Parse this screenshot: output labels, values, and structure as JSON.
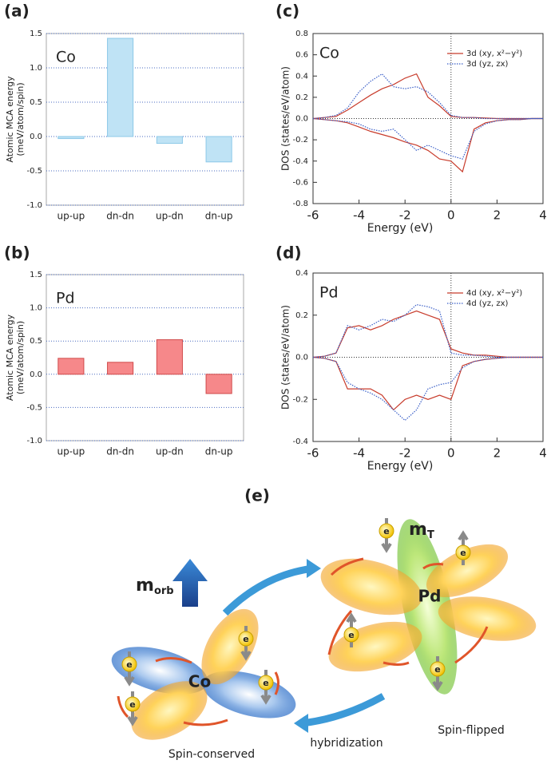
{
  "chart_data": [
    {
      "type": "bar",
      "label": "(a)",
      "annotation": "Co",
      "ylabel": [
        "Atomic MCA energy",
        "(meV/atom/spin)"
      ],
      "categories": [
        "up-up",
        "dn-dn",
        "up-dn",
        "dn-up"
      ],
      "values": [
        -0.03,
        1.43,
        -0.1,
        -0.37
      ],
      "color": "#bfe3f5",
      "edge_color": "#8cc8e8",
      "ylim": [
        -1,
        1.5
      ],
      "yticks": [
        {
          "value": -1,
          "label": "-1.0"
        },
        -0.5,
        {
          "value": 0,
          "label": "0.0"
        },
        0.5,
        {
          "value": 1,
          "label": "1.0"
        },
        1.5
      ],
      "grid": true
    },
    {
      "type": "line",
      "label": "(c)",
      "annotation": "Co",
      "xlabel": "Energy (eV)",
      "ylabel": "DOS (states/eV/atom)",
      "x": [
        -6,
        -5.5,
        -5,
        -4.5,
        -4,
        -3.5,
        -3,
        -2.5,
        -2,
        -1.5,
        -1,
        -0.5,
        0,
        0.5,
        1,
        1.5,
        2,
        2.5,
        3,
        3.5,
        4
      ],
      "series": [
        {
          "name": "3d (xy, x²−y²)",
          "color": "#c83c2c",
          "dash": false,
          "values": [
            0,
            0.01,
            0.02,
            0.08,
            0.15,
            0.22,
            0.28,
            0.32,
            0.38,
            0.42,
            0.2,
            0.12,
            0.02,
            0.01,
            0.01,
            0.005,
            0,
            0,
            0,
            0,
            0
          ],
          "values_down": [
            0,
            -0.01,
            -0.02,
            -0.04,
            -0.08,
            -0.12,
            -0.15,
            -0.18,
            -0.22,
            -0.25,
            -0.3,
            -0.38,
            -0.4,
            -0.5,
            -0.1,
            -0.04,
            -0.02,
            -0.01,
            -0.01,
            0,
            0
          ]
        },
        {
          "name": "3d (yz, zx)",
          "color": "#3a5fc8",
          "dash": true,
          "values": [
            0,
            0.01,
            0.03,
            0.1,
            0.25,
            0.35,
            0.42,
            0.3,
            0.28,
            0.3,
            0.25,
            0.15,
            0.03,
            0.01,
            0.01,
            0,
            0,
            0,
            0,
            0,
            0
          ],
          "values_down": [
            0,
            -0.01,
            -0.02,
            -0.03,
            -0.05,
            -0.1,
            -0.12,
            -0.1,
            -0.2,
            -0.3,
            -0.25,
            -0.3,
            -0.35,
            -0.38,
            -0.12,
            -0.05,
            -0.02,
            -0.01,
            -0.01,
            0,
            0
          ]
        }
      ],
      "xlim": [
        -6,
        4
      ],
      "xticks": [
        -6,
        -4,
        -2,
        0,
        2,
        4
      ],
      "ylim": [
        -0.8,
        0.8
      ],
      "yticks": [
        -0.8,
        -0.6,
        -0.4,
        -0.2,
        {
          "value": 0,
          "label": "0.0"
        },
        0.2,
        0.4,
        0.6,
        0.8
      ],
      "zero_lines": true,
      "legend": "upper right"
    },
    {
      "type": "bar",
      "label": "(b)",
      "annotation": "Pd",
      "ylabel": [
        "Atomic MCA energy",
        "(meV/atom/spin)"
      ],
      "categories": [
        "up-up",
        "dn-dn",
        "up-dn",
        "dn-up"
      ],
      "values": [
        0.24,
        0.18,
        0.52,
        -0.29
      ],
      "color": "#f6888a",
      "edge_color": "#d04a4a",
      "ylim": [
        -1,
        1.5
      ],
      "yticks": [
        {
          "value": -1,
          "label": "-1.0"
        },
        -0.5,
        {
          "value": 0,
          "label": "0.0"
        },
        0.5,
        {
          "value": 1,
          "label": "1.0"
        },
        1.5
      ],
      "grid": true
    },
    {
      "type": "line",
      "label": "(d)",
      "annotation": "Pd",
      "xlabel": "Energy (eV)",
      "ylabel": "DOS (states/eV/atom)",
      "x": [
        -6,
        -5.5,
        -5,
        -4.5,
        -4,
        -3.5,
        -3,
        -2.5,
        -2,
        -1.5,
        -1,
        -0.5,
        0,
        0.5,
        1,
        1.5,
        2,
        2.5,
        3,
        3.5,
        4
      ],
      "series": [
        {
          "name": "4d (xy, x²−y²)",
          "color": "#c83c2c",
          "dash": false,
          "values": [
            0,
            0.005,
            0.02,
            0.14,
            0.15,
            0.13,
            0.15,
            0.18,
            0.2,
            0.22,
            0.2,
            0.18,
            0.04,
            0.02,
            0.01,
            0.01,
            0.005,
            0,
            0,
            0,
            0
          ],
          "values_down": [
            0,
            -0.005,
            -0.02,
            -0.15,
            -0.15,
            -0.15,
            -0.18,
            -0.25,
            -0.2,
            -0.18,
            -0.2,
            -0.18,
            -0.2,
            -0.04,
            -0.02,
            -0.01,
            -0.005,
            0,
            0,
            0,
            0
          ]
        },
        {
          "name": "4d (yz, zx)",
          "color": "#3a5fc8",
          "dash": true,
          "values": [
            0,
            0.005,
            0.02,
            0.15,
            0.13,
            0.15,
            0.18,
            0.17,
            0.2,
            0.25,
            0.24,
            0.22,
            0.02,
            0.01,
            0.01,
            0.005,
            0,
            0,
            0,
            0,
            0
          ],
          "values_down": [
            0,
            -0.005,
            -0.02,
            -0.12,
            -0.15,
            -0.17,
            -0.2,
            -0.25,
            -0.3,
            -0.25,
            -0.15,
            -0.13,
            -0.12,
            -0.05,
            -0.02,
            -0.01,
            -0.005,
            0,
            0,
            0,
            0
          ]
        }
      ],
      "xlim": [
        -6,
        4
      ],
      "xticks": [
        -6,
        -4,
        -2,
        0,
        2,
        4
      ],
      "ylim": [
        -0.4,
        0.4
      ],
      "yticks": [
        -0.4,
        -0.2,
        {
          "value": 0,
          "label": "0.0"
        },
        0.2,
        0.4
      ],
      "zero_lines": true,
      "legend": "upper right"
    }
  ],
  "diagram": {
    "label": "(e)",
    "m": "m",
    "orb": "orb",
    "t": "T",
    "co": "Co",
    "pd": "Pd",
    "electron": "e",
    "spin_conserved": "Spin-conserved",
    "hybridization": "hybridization",
    "spin_flipped": "Spin-flipped"
  }
}
